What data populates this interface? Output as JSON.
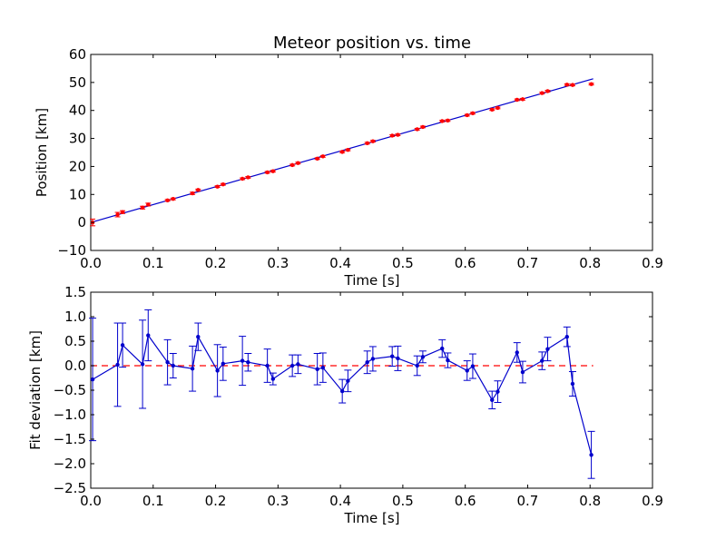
{
  "chart_data": [
    {
      "type": "scatter",
      "title": "Meteor position vs. time",
      "xlabel": "Time [s]",
      "ylabel": "Position [km]",
      "xlim": [
        0.0,
        0.9
      ],
      "ylim": [
        -10,
        60
      ],
      "xticks": [
        "0.0",
        "0.1",
        "0.2",
        "0.3",
        "0.4",
        "0.5",
        "0.6",
        "0.7",
        "0.8",
        "0.9"
      ],
      "yticks": [
        "−10",
        "0",
        "10",
        "20",
        "30",
        "40",
        "50",
        "60"
      ],
      "grid": false,
      "colors": {
        "points": "#ff0000",
        "fit": "#0000cc"
      },
      "fit_line": {
        "x": [
          0.0,
          0.805
        ],
        "y": [
          0.0,
          51.3
        ]
      },
      "series": [
        {
          "x": [
            0.003,
            0.043,
            0.051,
            0.083,
            0.092,
            0.123,
            0.132,
            0.163,
            0.172,
            0.203,
            0.212,
            0.243,
            0.252,
            0.283,
            0.292,
            0.323,
            0.332,
            0.363,
            0.372,
            0.403,
            0.412,
            0.443,
            0.452,
            0.483,
            0.492,
            0.523,
            0.532,
            0.563,
            0.572,
            0.603,
            0.612,
            0.643,
            0.652,
            0.683,
            0.692,
            0.723,
            0.732,
            0.763,
            0.772,
            0.802
          ],
          "y": [
            0.0,
            2.8,
            3.7,
            5.3,
            6.4,
            7.9,
            8.4,
            10.4,
            11.6,
            12.8,
            13.6,
            15.6,
            16.1,
            17.9,
            18.3,
            20.5,
            21.2,
            22.8,
            23.6,
            25.2,
            25.9,
            28.3,
            29.0,
            31.0,
            31.3,
            33.3,
            34.1,
            36.2,
            36.4,
            38.3,
            39.0,
            40.3,
            40.9,
            43.8,
            44.0,
            46.2,
            46.9,
            49.2,
            49.1,
            49.4
          ],
          "yerr": [
            1.2,
            0.8,
            0.5,
            0.5,
            0.5,
            0.3,
            0.3,
            0.4,
            0.3,
            0.3,
            0.3,
            0.3,
            0.3,
            0.3,
            0.3,
            0.3,
            0.3,
            0.3,
            0.3,
            0.3,
            0.3,
            0.3,
            0.3,
            0.3,
            0.3,
            0.3,
            0.3,
            0.3,
            0.3,
            0.3,
            0.3,
            0.3,
            0.3,
            0.3,
            0.3,
            0.3,
            0.3,
            0.3,
            0.3,
            0.3
          ]
        }
      ]
    },
    {
      "type": "line",
      "title": "",
      "xlabel": "Time [s]",
      "ylabel": "Fit deviation [km]",
      "xlim": [
        0.0,
        0.9
      ],
      "ylim": [
        -2.5,
        1.5
      ],
      "xticks": [
        "0.0",
        "0.1",
        "0.2",
        "0.3",
        "0.4",
        "0.5",
        "0.6",
        "0.7",
        "0.8",
        "0.9"
      ],
      "yticks": [
        "−2.5",
        "−2.0",
        "−1.5",
        "−1.0",
        "−0.5",
        "0.0",
        "0.5",
        "1.0",
        "1.5"
      ],
      "grid": false,
      "colors": {
        "line": "#0000cc",
        "zero_line": "#ff0000"
      },
      "zero_line": {
        "x": [
          0.0,
          0.805
        ],
        "y": [
          0.0,
          0.0
        ]
      },
      "series": [
        {
          "x": [
            0.003,
            0.043,
            0.051,
            0.083,
            0.092,
            0.123,
            0.132,
            0.163,
            0.172,
            0.203,
            0.212,
            0.243,
            0.252,
            0.283,
            0.292,
            0.323,
            0.332,
            0.363,
            0.372,
            0.403,
            0.412,
            0.443,
            0.452,
            0.483,
            0.492,
            0.523,
            0.532,
            0.563,
            0.572,
            0.603,
            0.612,
            0.643,
            0.652,
            0.683,
            0.692,
            0.723,
            0.732,
            0.763,
            0.772,
            0.802
          ],
          "y": [
            -0.28,
            0.02,
            0.42,
            0.03,
            0.62,
            0.07,
            0.0,
            -0.06,
            0.59,
            -0.1,
            0.04,
            0.1,
            0.07,
            0.0,
            -0.27,
            0.0,
            0.03,
            -0.07,
            -0.04,
            -0.52,
            -0.31,
            0.07,
            0.14,
            0.19,
            0.15,
            0.0,
            0.18,
            0.35,
            0.11,
            -0.1,
            -0.01,
            -0.7,
            -0.53,
            0.27,
            -0.13,
            0.1,
            0.34,
            0.59,
            -0.37,
            -1.82
          ],
          "yerr": [
            1.25,
            0.85,
            0.45,
            0.9,
            0.52,
            0.46,
            0.25,
            0.46,
            0.28,
            0.53,
            0.34,
            0.5,
            0.18,
            0.34,
            0.12,
            0.22,
            0.19,
            0.32,
            0.3,
            0.24,
            0.22,
            0.23,
            0.25,
            0.2,
            0.25,
            0.2,
            0.12,
            0.18,
            0.15,
            0.2,
            0.25,
            0.18,
            0.22,
            0.2,
            0.22,
            0.18,
            0.24,
            0.2,
            0.25,
            0.48
          ]
        }
      ]
    }
  ]
}
